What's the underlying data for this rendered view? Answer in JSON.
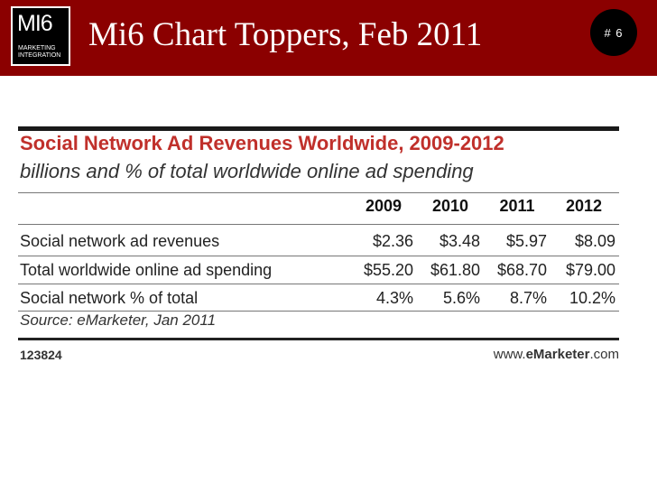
{
  "header": {
    "logo_mark": "MI6",
    "logo_sub": "MARKETING INTEGRATION",
    "title": "Mi6 Chart Toppers, Feb 2011",
    "slide_number": "# 6"
  },
  "chart_data": {
    "type": "table",
    "title": "Social Network Ad Revenues Worldwide, 2009-2012",
    "subtitle": "billions and % of total worldwide online ad spending",
    "columns": [
      "2009",
      "2010",
      "2011",
      "2012"
    ],
    "rows": [
      {
        "label": "Social network ad revenues",
        "values": [
          "$2.36",
          "$3.48",
          "$5.97",
          "$8.09"
        ]
      },
      {
        "label": "Total worldwide online ad spending",
        "values": [
          "$55.20",
          "$61.80",
          "$68.70",
          "$79.00"
        ]
      },
      {
        "label": "Social network % of total",
        "values": [
          "4.3%",
          "5.6%",
          "8.7%",
          "10.2%"
        ]
      }
    ],
    "source": "Source: eMarketer, Jan 2011",
    "chart_id": "123824",
    "brand_prefix": "www.",
    "brand_name": "eMarketer",
    "brand_suffix": ".com"
  }
}
